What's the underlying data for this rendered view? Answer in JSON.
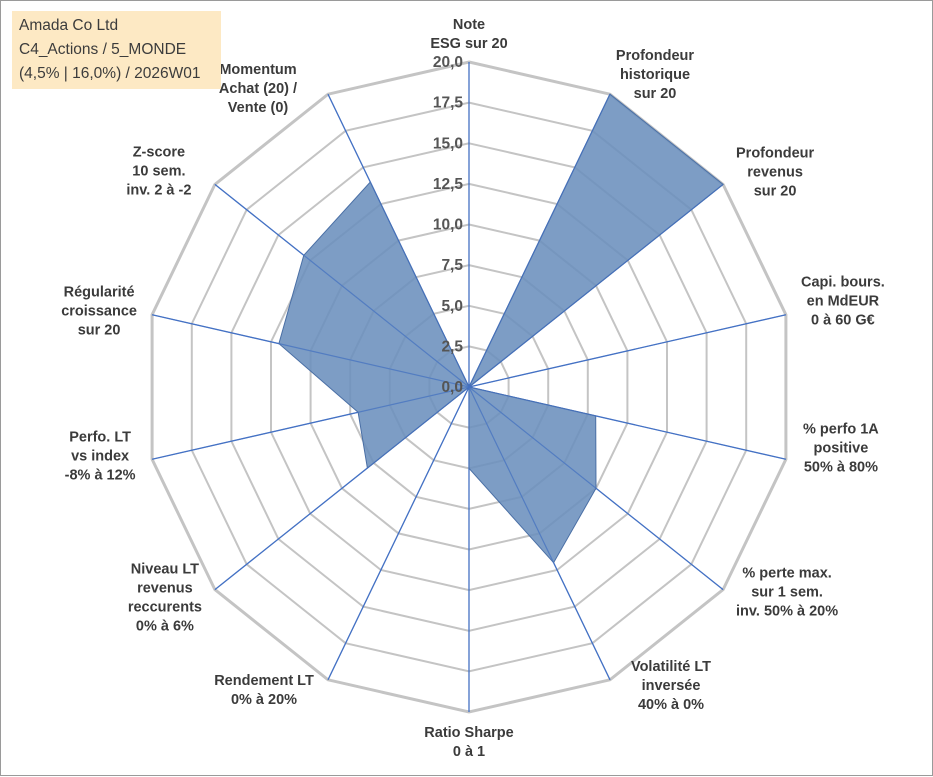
{
  "header": {
    "line1": "Amada Co Ltd",
    "line2": "C4_Actions / 5_MONDE",
    "line3": "(4,5% | 16,0%) / 2026W01"
  },
  "chart_data": {
    "type": "radar",
    "rmax": 20,
    "ticks": [
      "0,0",
      "2,5",
      "5,0",
      "7,5",
      "10,0",
      "12,5",
      "15,0",
      "17,5",
      "20,0"
    ],
    "gridlines": true,
    "fill_color": "#6b8fbd",
    "axis_color": "#4472c4",
    "grid_color": "#c4c4c4",
    "axes": [
      {
        "label": [
          "Note",
          "ESG sur 20"
        ],
        "value": 0
      },
      {
        "label": [
          "Profondeur",
          "historique",
          "sur 20"
        ],
        "value": 20
      },
      {
        "label": [
          "Profondeur",
          "revenus",
          "sur 20"
        ],
        "value": 20
      },
      {
        "label": [
          "Capi. bours.",
          "en MdEUR",
          "0 à 60 G€"
        ],
        "value": 0
      },
      {
        "label": [
          "% perfo 1A",
          "positive",
          "50% à 80%"
        ],
        "value": 8
      },
      {
        "label": [
          "% perte max.",
          "sur 1 sem.",
          "inv. 50% à 20%"
        ],
        "value": 10
      },
      {
        "label": [
          "Volatilité LT",
          "inversée",
          "40% à 0%"
        ],
        "value": 12
      },
      {
        "label": [
          "Ratio Sharpe",
          "0 à 1"
        ],
        "value": 5
      },
      {
        "label": [
          "Rendement LT",
          "0% à 20%"
        ],
        "value": 0
      },
      {
        "label": [
          "Niveau LT",
          "revenus",
          "reccurents",
          "0% à 6%"
        ],
        "value": 8
      },
      {
        "label": [
          "Perfo. LT",
          "vs index",
          "-8% à 12%"
        ],
        "value": 7
      },
      {
        "label": [
          "Régularité",
          "croissance",
          "sur 20"
        ],
        "value": 12
      },
      {
        "label": [
          "Z-score",
          "10 sem.",
          "inv. 2 à -2"
        ],
        "value": 13
      },
      {
        "label": [
          "Momentum",
          "Achat (20) /",
          "Vente (0)"
        ],
        "value": 14
      }
    ]
  }
}
